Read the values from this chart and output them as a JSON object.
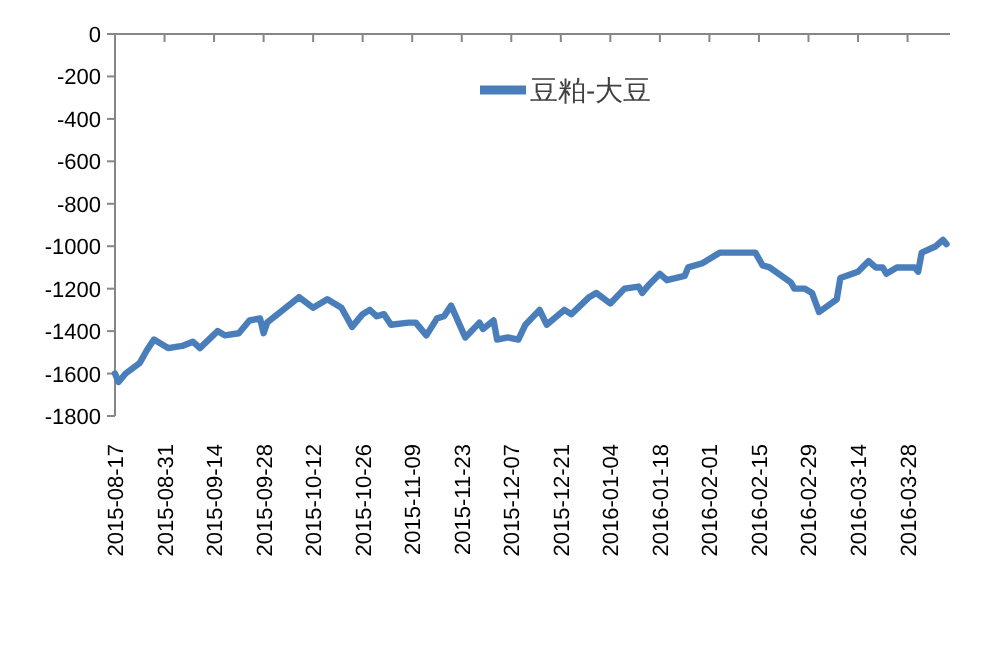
{
  "chart_data": {
    "type": "line",
    "xlim": [
      "2015-08-17",
      "2016-04-09"
    ],
    "ylim": [
      -1800,
      0
    ],
    "yticks": [
      0,
      -200,
      -400,
      -600,
      -800,
      -1000,
      -1200,
      -1400,
      -1600,
      -1800
    ],
    "xticks": [
      "2015-08-17",
      "2015-08-31",
      "2015-09-14",
      "2015-09-28",
      "2015-10-12",
      "2015-10-26",
      "2015-11-09",
      "2015-11-23",
      "2015-12-07",
      "2015-12-21",
      "2016-01-04",
      "2016-01-18",
      "2016-02-01",
      "2016-02-15",
      "2016-02-29",
      "2016-03-14",
      "2016-03-28"
    ],
    "grid": false,
    "legend": "top",
    "marker": "none",
    "line_style": "solid",
    "series": [
      {
        "name": "豆粕-大豆",
        "color": "#4a7ebb",
        "x": [
          "2015-08-17",
          "2015-08-18",
          "2015-08-20",
          "2015-08-24",
          "2015-08-26",
          "2015-08-28",
          "2015-09-01",
          "2015-09-05",
          "2015-09-08",
          "2015-09-10",
          "2015-09-15",
          "2015-09-17",
          "2015-09-21",
          "2015-09-24",
          "2015-09-27",
          "2015-09-28",
          "2015-09-29",
          "2015-10-08",
          "2015-10-12",
          "2015-10-16",
          "2015-10-20",
          "2015-10-23",
          "2015-10-26",
          "2015-10-28",
          "2015-10-30",
          "2015-11-01",
          "2015-11-03",
          "2015-11-08",
          "2015-11-10",
          "2015-11-13",
          "2015-11-16",
          "2015-11-18",
          "2015-11-20",
          "2015-11-24",
          "2015-11-28",
          "2015-11-29",
          "2015-12-02",
          "2015-12-03",
          "2015-12-06",
          "2015-12-09",
          "2015-12-11",
          "2015-12-15",
          "2015-12-17",
          "2015-12-22",
          "2015-12-24",
          "2015-12-29",
          "2015-12-31",
          "2016-01-04",
          "2016-01-08",
          "2016-01-12",
          "2016-01-13",
          "2016-01-15",
          "2016-01-18",
          "2016-01-20",
          "2016-01-25",
          "2016-01-26",
          "2016-01-30",
          "2016-02-04",
          "2016-02-14",
          "2016-02-16",
          "2016-02-18",
          "2016-02-24",
          "2016-02-25",
          "2016-02-28",
          "2016-03-01",
          "2016-03-03",
          "2016-03-08",
          "2016-03-09",
          "2016-03-14",
          "2016-03-17",
          "2016-03-19",
          "2016-03-21",
          "2016-03-22",
          "2016-03-25",
          "2016-03-30",
          "2016-03-31",
          "2016-04-01",
          "2016-04-05",
          "2016-04-07",
          "2016-04-08"
        ],
        "values": [
          -1600,
          -1640,
          -1600,
          -1550,
          -1490,
          -1440,
          -1480,
          -1470,
          -1450,
          -1480,
          -1400,
          -1420,
          -1410,
          -1350,
          -1340,
          -1410,
          -1360,
          -1240,
          -1290,
          -1250,
          -1290,
          -1380,
          -1320,
          -1300,
          -1330,
          -1320,
          -1370,
          -1360,
          -1360,
          -1420,
          -1340,
          -1330,
          -1280,
          -1430,
          -1360,
          -1390,
          -1350,
          -1440,
          -1430,
          -1440,
          -1370,
          -1300,
          -1370,
          -1300,
          -1320,
          -1240,
          -1220,
          -1270,
          -1200,
          -1190,
          -1220,
          -1180,
          -1130,
          -1160,
          -1140,
          -1100,
          -1080,
          -1030,
          -1030,
          -1090,
          -1100,
          -1170,
          -1200,
          -1200,
          -1220,
          -1310,
          -1250,
          -1150,
          -1120,
          -1070,
          -1100,
          -1100,
          -1130,
          -1100,
          -1100,
          -1120,
          -1030,
          -1000,
          -970,
          -990
        ]
      }
    ]
  }
}
